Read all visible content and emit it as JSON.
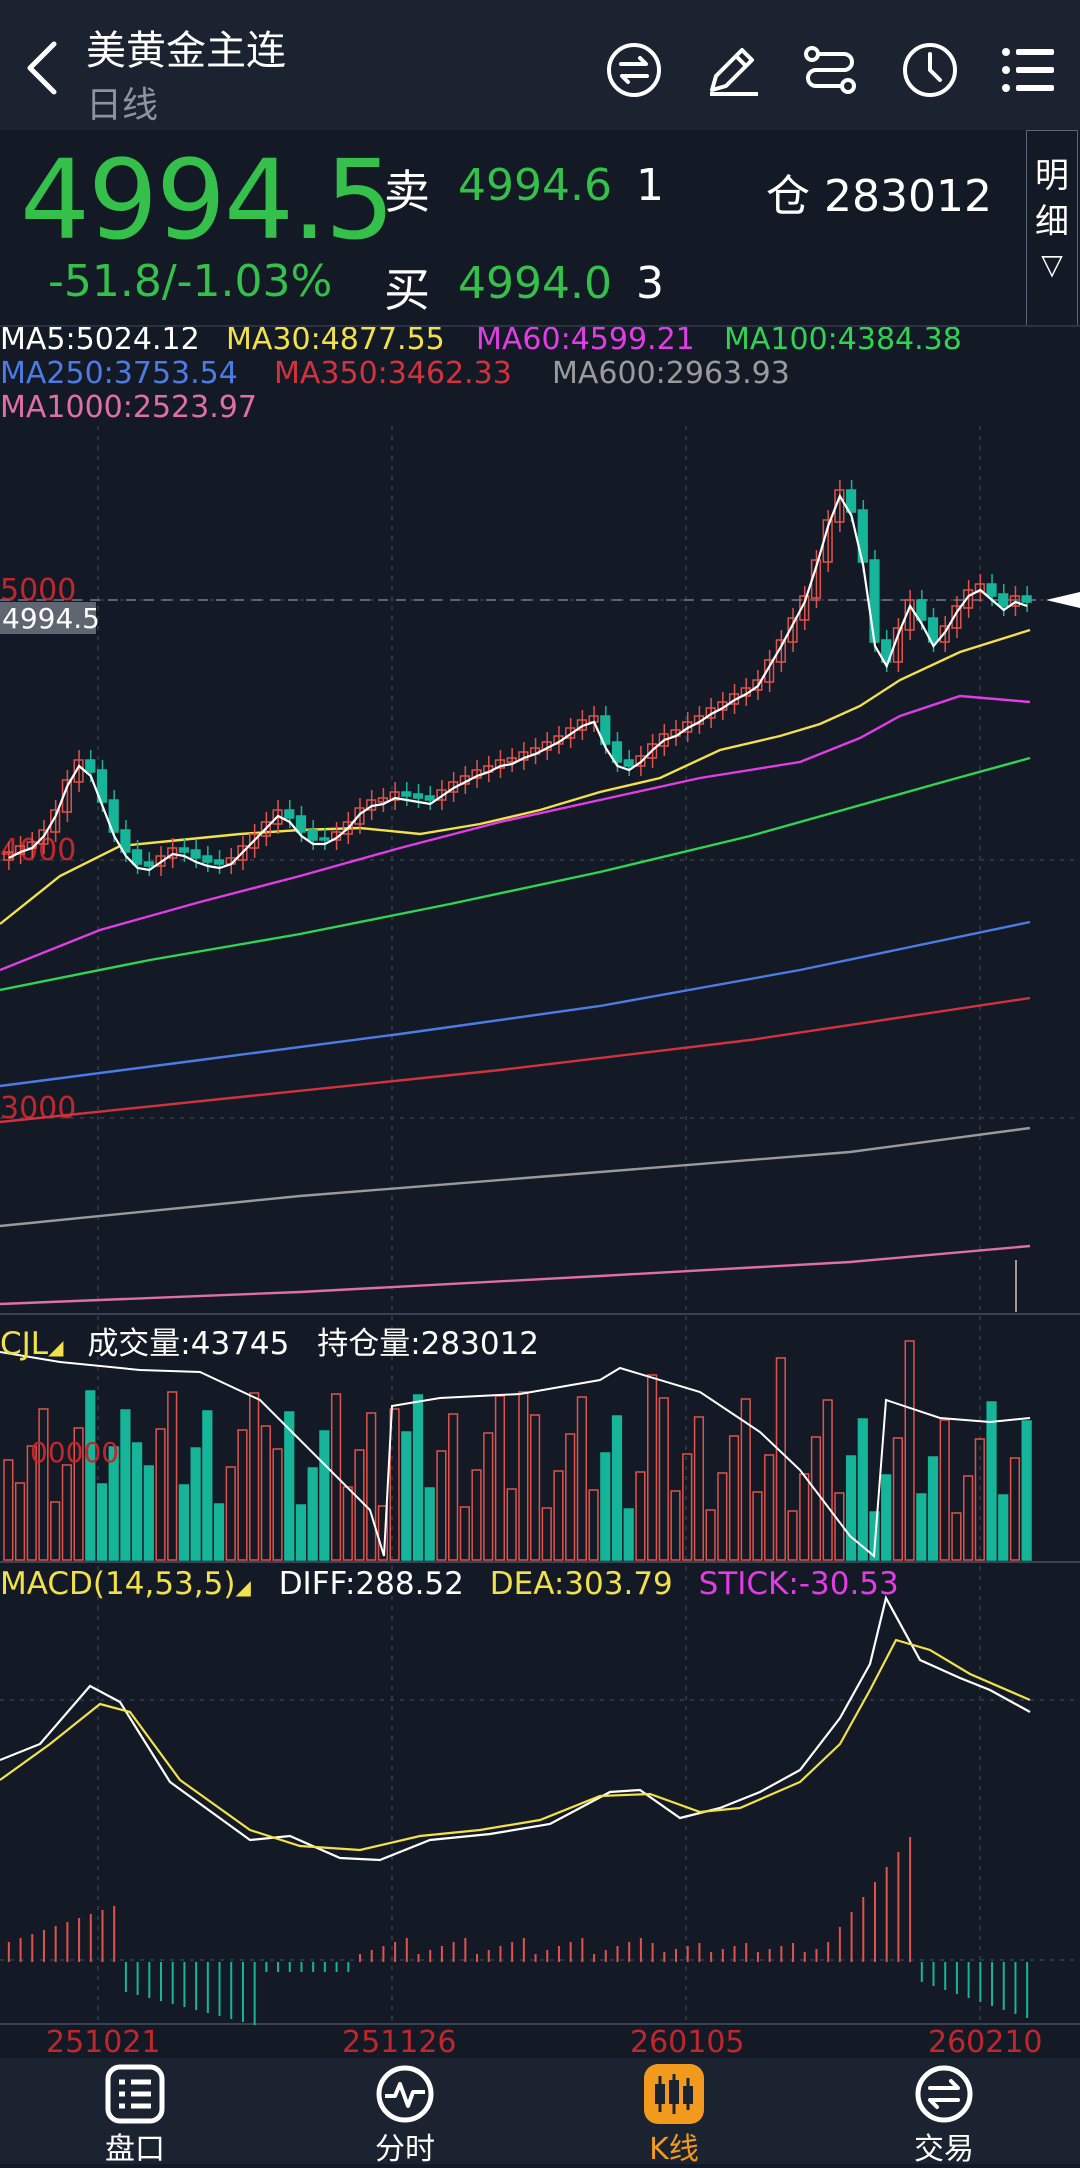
{
  "header": {
    "title": "美黄金主连",
    "subtitle": "日线",
    "icons": [
      "back-chevron-icon",
      "exchange-icon",
      "edit-pencil-icon",
      "route-icon",
      "clock-icon",
      "menu-list-icon"
    ]
  },
  "quote": {
    "last": "4994.5",
    "change": "-51.8/-1.03%",
    "sell_label": "卖",
    "sell_price": "4994.6",
    "sell_qty": "1",
    "buy_label": "买",
    "buy_price": "4994.0",
    "buy_qty": "3",
    "position": "仓 283012",
    "detail_label": "明细",
    "detail_arrow": "▽"
  },
  "ma_legend": [
    {
      "text": "MA5:5024.12",
      "color": "#ffffff"
    },
    {
      "text": "MA30:4877.55",
      "color": "#f2e14a"
    },
    {
      "text": "MA60:4599.21",
      "color": "#e23ce6"
    },
    {
      "text": "MA100:4384.38",
      "color": "#31d352"
    },
    {
      "text": "MA250:3753.54",
      "color": "#4d7be6"
    },
    {
      "text": "MA350:3462.33",
      "color": "#d1323e"
    },
    {
      "text": "MA600:2963.93",
      "color": "#9a9a9a"
    },
    {
      "text": "MA1000:2523.97",
      "color": "#e06fa4"
    }
  ],
  "price_axis": {
    "labels": [
      "5000",
      "4000",
      "3000"
    ],
    "current_tag": "4994.5"
  },
  "volume_panel": {
    "name": "CJL",
    "volume": "成交量:43745",
    "open_interest": "持仓量:283012",
    "axis_label": "00000"
  },
  "macd_panel": {
    "name": "MACD(14,53,5)",
    "diff": "DIFF:288.52",
    "dea": "DEA:303.79",
    "stick": "STICK:-30.53"
  },
  "x_axis_labels": [
    "251021",
    "251126",
    "260105",
    "260210"
  ],
  "tabs": [
    {
      "label": "盘口",
      "icon": "order-book-icon",
      "active": false
    },
    {
      "label": "分时",
      "icon": "pulse-icon",
      "active": false
    },
    {
      "label": "K线",
      "icon": "candlestick-icon",
      "active": true
    },
    {
      "label": "交易",
      "icon": "trade-icon",
      "active": false
    }
  ],
  "colors": {
    "up": "#e0534a",
    "down": "#16b59a",
    "accent": "#f29a1d",
    "price_green": "#34c04a"
  },
  "chart_data": {
    "type": "candlestick",
    "price_last": 4994.5,
    "price_axis_ticks": [
      5000,
      4000,
      3000
    ],
    "x_ticks": [
      "251021",
      "251126",
      "260105",
      "260210"
    ],
    "ma_latest": {
      "MA5": 5024.12,
      "MA30": 4877.55,
      "MA60": 4599.21,
      "MA100": 4384.38,
      "MA250": 3753.54,
      "MA350": 3462.33,
      "MA600": 2963.93,
      "MA1000": 2523.97
    },
    "volume_latest": 43745,
    "open_interest_latest": 283012,
    "macd_latest": {
      "DIFF": 288.52,
      "DEA": 303.79,
      "STICK": -30.53
    }
  }
}
